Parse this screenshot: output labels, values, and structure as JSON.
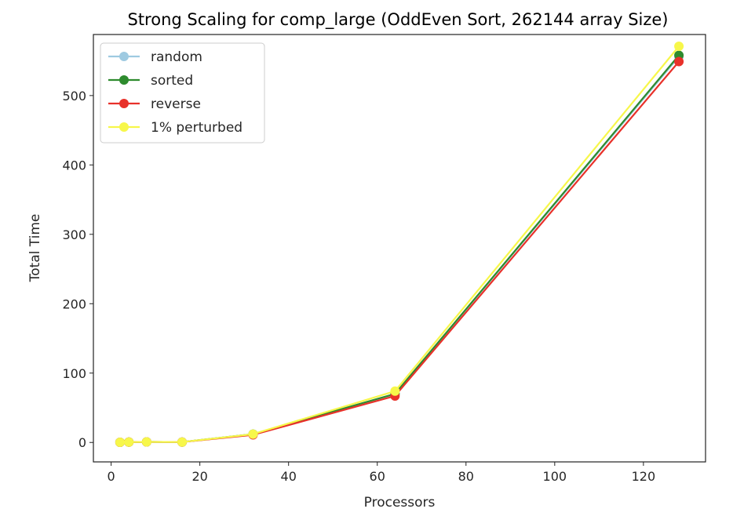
{
  "chart_data": {
    "type": "line",
    "title": "Strong Scaling for comp_large (OddEven Sort, 262144 array Size)",
    "xlabel": "Processors",
    "ylabel": "Total Time",
    "xlim": [
      -4,
      134
    ],
    "ylim": [
      -28,
      588
    ],
    "xticks": [
      0,
      20,
      40,
      60,
      80,
      100,
      120
    ],
    "yticks": [
      0,
      100,
      200,
      300,
      400,
      500
    ],
    "grid": false,
    "legend_position": "upper-left",
    "x": [
      2,
      4,
      8,
      16,
      32,
      64,
      128
    ],
    "series": [
      {
        "name": "random",
        "color": "#9ecae1",
        "values": [
          0.3,
          0.5,
          0.8,
          0.6,
          12,
          70,
          556
        ]
      },
      {
        "name": "sorted",
        "color": "#2e8b2e",
        "values": [
          0.3,
          0.5,
          0.8,
          0.6,
          12,
          70,
          558
        ]
      },
      {
        "name": "reverse",
        "color": "#e8312a",
        "values": [
          0.3,
          0.5,
          0.8,
          0.6,
          11,
          67,
          549
        ]
      },
      {
        "name": "1% perturbed",
        "color": "#f7f74a",
        "values": [
          0.3,
          0.5,
          0.8,
          0.6,
          12,
          74,
          571
        ]
      }
    ]
  }
}
